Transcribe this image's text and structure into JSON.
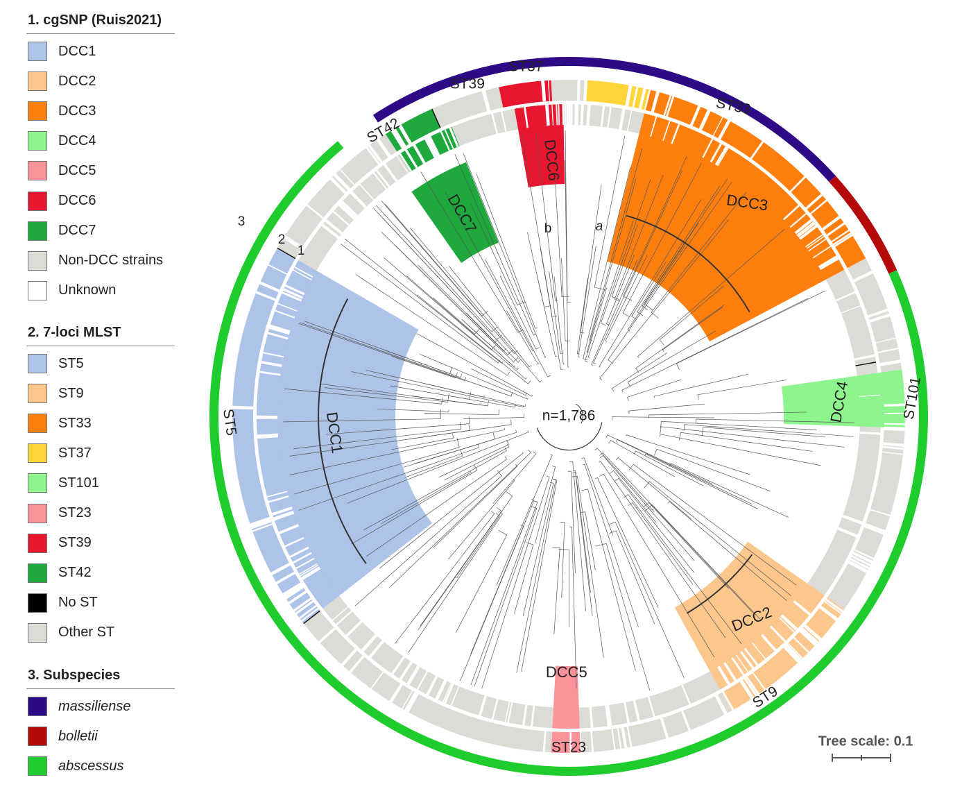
{
  "legend": {
    "sections": [
      {
        "title": "1. cgSNP (Ruis2021)",
        "items": [
          {
            "label": "DCC1",
            "color": "#aec3e8"
          },
          {
            "label": "DCC2",
            "color": "#fcc78d"
          },
          {
            "label": "DCC3",
            "color": "#ff7f0e"
          },
          {
            "label": "DCC4",
            "color": "#8ef58e"
          },
          {
            "label": "DCC5",
            "color": "#fc929a"
          },
          {
            "label": "DCC6",
            "color": "#e8172f"
          },
          {
            "label": "DCC7",
            "color": "#1ea83d"
          },
          {
            "label": "Non-DCC strains",
            "color": "#dcdbd6"
          },
          {
            "label": "Unknown",
            "color": "#ffffff"
          }
        ]
      },
      {
        "title": "2. 7-loci MLST",
        "items": [
          {
            "label": "ST5",
            "color": "#aec3e8"
          },
          {
            "label": "ST9",
            "color": "#fcc78d"
          },
          {
            "label": "ST33",
            "color": "#ff7f0e"
          },
          {
            "label": "ST37",
            "color": "#ffd53a"
          },
          {
            "label": "ST101",
            "color": "#8ef58e"
          },
          {
            "label": "ST23",
            "color": "#fc929a"
          },
          {
            "label": "ST39",
            "color": "#e8172f"
          },
          {
            "label": "ST42",
            "color": "#1ea83d"
          },
          {
            "label": "No ST",
            "color": "#000000"
          },
          {
            "label": "Other ST",
            "color": "#dcdbd6"
          }
        ]
      },
      {
        "title": "3. Subspecies",
        "items": [
          {
            "label": "massiliense",
            "color": "#2e0a86",
            "italic": true
          },
          {
            "label": "bolletii",
            "color": "#b50a0a",
            "italic": true
          },
          {
            "label": "abscessus",
            "color": "#1fcc2e",
            "italic": true
          }
        ]
      }
    ]
  },
  "tree": {
    "n_label": "n=1,786",
    "ring_labels": [
      "1",
      "2",
      "3"
    ],
    "subclade_labels": [
      "a",
      "b"
    ],
    "scale_label": "Tree scale: 0.1",
    "dcc_labels": [
      "DCC1",
      "DCC2",
      "DCC3",
      "DCC4",
      "DCC5",
      "DCC6",
      "DCC7"
    ],
    "st_labels": [
      "ST5",
      "ST9",
      "ST33",
      "ST37",
      "ST101",
      "ST23",
      "ST39",
      "ST42"
    ]
  }
}
